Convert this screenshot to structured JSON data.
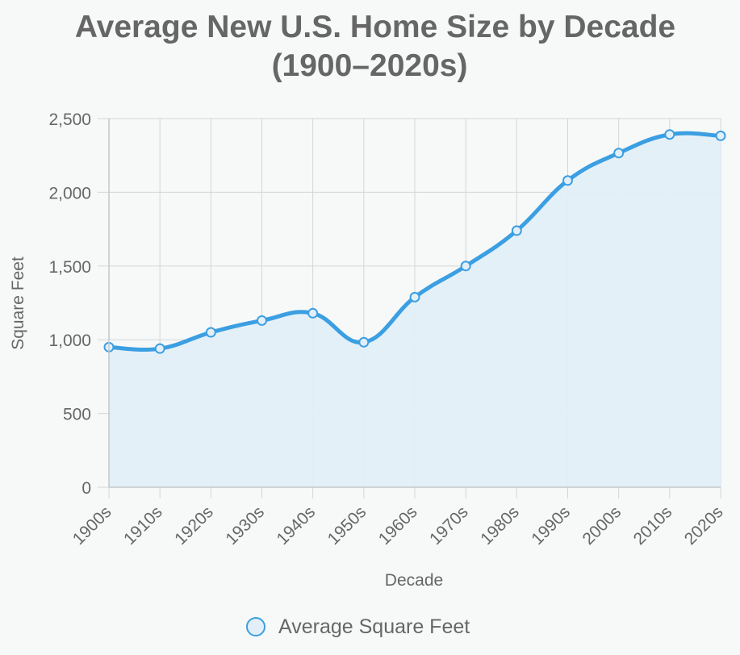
{
  "chart_data": {
    "type": "area",
    "title_lines": [
      "Average New U.S. Home Size by Decade",
      "(1900–2020s)"
    ],
    "xlabel": "Decade",
    "ylabel": "Square Feet",
    "categories": [
      "1900s",
      "1910s",
      "1920s",
      "1930s",
      "1940s",
      "1950s",
      "1960s",
      "1970s",
      "1980s",
      "1990s",
      "2000s",
      "2010s",
      "2020s"
    ],
    "series": [
      {
        "name": "Average Square Feet",
        "values": [
          950,
          940,
          1050,
          1130,
          1180,
          983,
          1289,
          1500,
          1740,
          2080,
          2266,
          2392,
          2383
        ]
      }
    ],
    "ylim": [
      0,
      2500
    ],
    "yticks": [
      0,
      500,
      1000,
      1500,
      2000,
      2500
    ],
    "ytick_labels": [
      "0",
      "500",
      "1,000",
      "1,500",
      "2,000",
      "2,500"
    ],
    "grid": true,
    "legend_position": "bottom",
    "colors": {
      "line": "#3b9fe2",
      "fill": "#e3eff8",
      "grid": "#d3d6d8",
      "text": "#666666",
      "background": "#f7f9f9"
    }
  }
}
